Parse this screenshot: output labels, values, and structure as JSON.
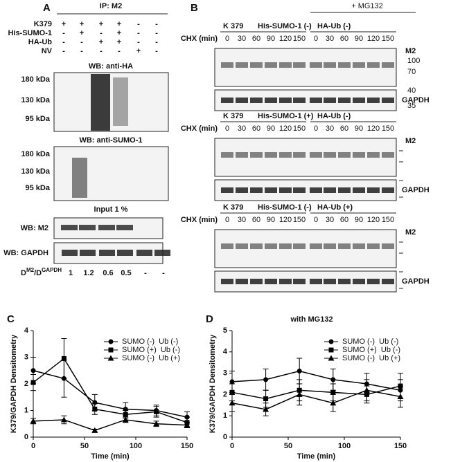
{
  "panel_a": {
    "letter": "A",
    "ip_label": "IP: M2",
    "rows": [
      {
        "label": "K379",
        "marks": [
          "+",
          "+",
          "+",
          "+",
          "-",
          "-"
        ]
      },
      {
        "label": "His-SUMO-1",
        "marks": [
          "-",
          "+",
          "-",
          "+",
          "-",
          "-"
        ]
      },
      {
        "label": "HA-Ub",
        "marks": [
          "-",
          "-",
          "+",
          "+",
          "-",
          "-"
        ]
      },
      {
        "label": "NV",
        "marks": [
          "-",
          "-",
          "-",
          "-",
          "+",
          "-"
        ]
      }
    ],
    "blots": [
      {
        "title": "WB: anti-HA",
        "markers": [
          "180 kDa",
          "130 kDa",
          "95 kDa"
        ]
      },
      {
        "title": "WB: anti-SUMO-1",
        "markers": [
          "180 kDa",
          "130 kDa",
          "95 kDa"
        ]
      }
    ],
    "input_label": "Input 1 %",
    "input_blots": [
      "WB: M2",
      "WB: GAPDH"
    ],
    "ratio": {
      "d1": "D",
      "sup1": "M2",
      "d2": "/D",
      "sup2": "GAPDH",
      "values": [
        "1",
        "1.2",
        "0.6",
        "0.5",
        "-",
        "-"
      ]
    }
  },
  "panel_b": {
    "letter": "B",
    "treatment": "+ MG132",
    "blocks": [
      {
        "strain": "K 379",
        "sumo": "His-SUMO-1 (-)",
        "ub": "HA-Ub (-)",
        "chx": "CHX (min)",
        "times": [
          0,
          30,
          60,
          90,
          120,
          150,
          0,
          30,
          60,
          90,
          120,
          150
        ],
        "m2": "M2",
        "gapdh": "GAPDH",
        "m2_markers": [
          "100",
          "70"
        ],
        "gapdh_markers": [
          "40",
          "35"
        ]
      },
      {
        "strain": "K 379",
        "sumo": "His-SUMO-1 (+)",
        "ub": "HA-Ub (-)",
        "chx": "CHX (min)",
        "times": [
          0,
          30,
          60,
          90,
          120,
          150,
          0,
          30,
          60,
          90,
          120,
          150
        ],
        "m2": "M2",
        "gapdh": "GAPDH"
      },
      {
        "strain": "K 379",
        "sumo": "His-SUMO-1 (-)",
        "ub": "HA-Ub (+)",
        "chx": "CHX (min)",
        "times": [
          0,
          30,
          60,
          90,
          120,
          150,
          0,
          30,
          60,
          90,
          120,
          150
        ],
        "m2": "M2",
        "gapdh": "GAPDH"
      }
    ]
  },
  "chart_data": [
    {
      "type": "line",
      "letter": "C",
      "x_label": "Time (min)",
      "y_label": "K379/GAPDH Densitometry",
      "x": [
        0,
        30,
        60,
        90,
        120,
        150
      ],
      "xlim": [
        0,
        150
      ],
      "xticks": [
        0,
        50,
        100,
        150
      ],
      "ylim": [
        0,
        4
      ],
      "yticks": [
        0,
        1,
        2,
        3,
        4
      ],
      "legend": "upper right",
      "series": [
        {
          "name": "SUMO (-)  Ub (-)",
          "color": "#000000",
          "marker": "circle",
          "values": [
            2.5,
            2.2,
            1.3,
            1.05,
            1.0,
            0.75
          ],
          "errors": [
            0.5,
            0.7,
            0.3,
            0.25,
            0.2,
            0.2
          ]
        },
        {
          "name": "SUMO (+)  Ub (-)",
          "color": "#000000",
          "marker": "square",
          "values": [
            2.05,
            2.95,
            1.05,
            0.85,
            0.95,
            0.55
          ],
          "errors": [
            0.3,
            0.75,
            0.2,
            0.15,
            0.2,
            0.2
          ]
        },
        {
          "name": "SUMO (-)  Ub (+)",
          "color": "#000000",
          "marker": "triangle",
          "values": [
            0.6,
            0.65,
            0.25,
            0.65,
            0.5,
            0.45
          ],
          "errors": [
            0.1,
            0.15,
            0.05,
            0.1,
            0.1,
            0.1
          ]
        }
      ]
    },
    {
      "type": "line",
      "letter": "D",
      "title": "with MG132",
      "x_label": "Time (min)",
      "y_label": "K379/GAPDH Densitometry",
      "x": [
        0,
        30,
        60,
        90,
        120,
        150
      ],
      "xlim": [
        0,
        150
      ],
      "xticks": [
        0,
        50,
        100,
        150
      ],
      "ylim": [
        0,
        5
      ],
      "yticks": [
        0,
        1,
        2,
        3,
        4,
        5
      ],
      "legend": "upper right",
      "series": [
        {
          "name": "SUMO (-)  Ub (-)",
          "color": "#000000",
          "marker": "circle",
          "values": [
            2.6,
            2.7,
            3.1,
            2.7,
            2.5,
            2.2
          ],
          "errors": [
            0.5,
            0.5,
            0.6,
            0.5,
            0.5,
            0.5
          ]
        },
        {
          "name": "SUMO (+)  Ub (-)",
          "color": "#000000",
          "marker": "square",
          "values": [
            2.1,
            1.8,
            2.2,
            2.1,
            2.0,
            2.4
          ],
          "errors": [
            0.4,
            0.4,
            0.5,
            0.4,
            0.4,
            0.6
          ]
        },
        {
          "name": "SUMO (-)  Ub (+)",
          "color": "#000000",
          "marker": "triangle",
          "values": [
            1.6,
            1.3,
            2.0,
            1.6,
            2.2,
            1.9
          ],
          "errors": [
            0.4,
            0.3,
            0.5,
            0.4,
            0.5,
            0.5
          ]
        }
      ]
    }
  ]
}
